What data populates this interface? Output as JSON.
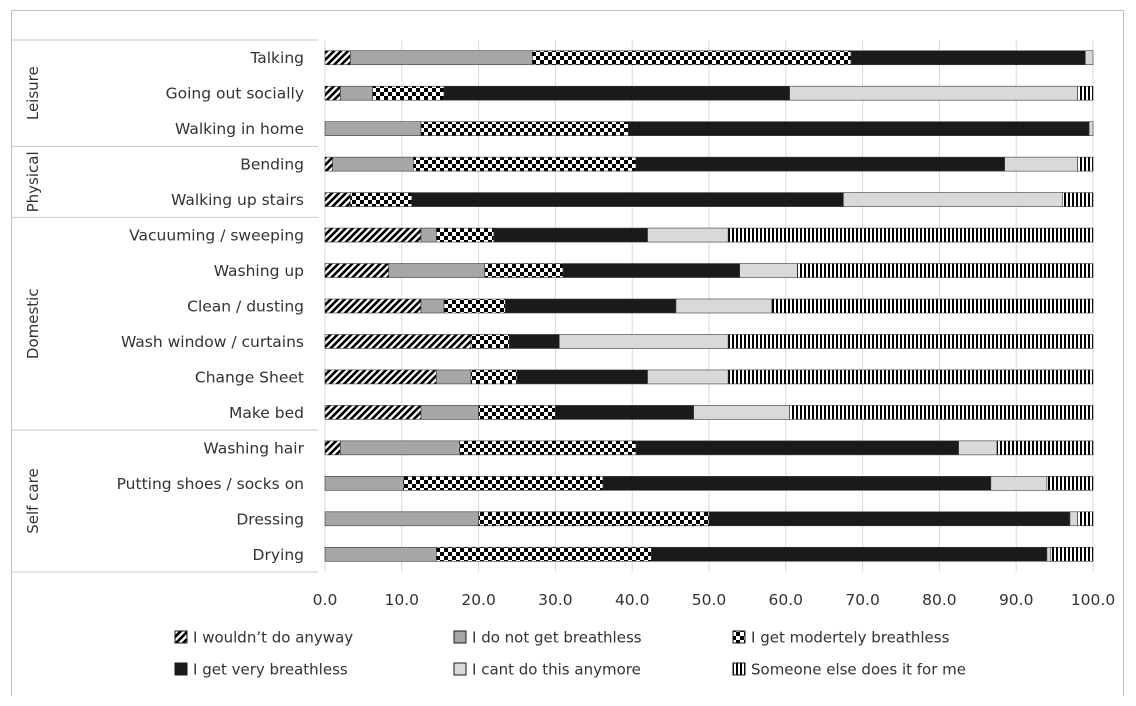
{
  "chart_data": {
    "type": "bar",
    "orientation": "horizontal",
    "stacked": true,
    "xlim": [
      0,
      100
    ],
    "xticks": [
      "0.0",
      "10.0",
      "20.0",
      "30.0",
      "40.0",
      "50.0",
      "60.0",
      "70.0",
      "80.0",
      "90.0",
      "100.0"
    ],
    "grid": "vertical",
    "legend_position": "bottom",
    "groups": [
      {
        "label": "Leisure",
        "categories": [
          "Talking",
          "Going out socially",
          "Walking in home"
        ]
      },
      {
        "label": "Physical",
        "categories": [
          "Bending",
          "Walking up stairs"
        ]
      },
      {
        "label": "Domestic",
        "categories": [
          "Vacuuming / sweeping",
          "Washing up",
          "Clean / dusting",
          "Wash window / curtains",
          "Change Sheet",
          "Make bed"
        ]
      },
      {
        "label": "Self care",
        "categories": [
          "Washing hair",
          "Putting shoes / socks on",
          "Dressing",
          "Drying"
        ]
      }
    ],
    "categories": [
      "Talking",
      "Going out socially",
      "Walking in home",
      "Bending",
      "Walking up stairs",
      "Vacuuming / sweeping",
      "Washing up",
      "Clean / dusting",
      "Wash window / curtains",
      "Change Sheet",
      "Make bed",
      "Washing hair",
      "Putting shoes / socks on",
      "Dressing",
      "Drying"
    ],
    "series": [
      {
        "name": "I wouldn’t do anyway",
        "pattern": "diagonal",
        "values": [
          3.3,
          2.0,
          0.0,
          1.0,
          3.3,
          12.5,
          8.3,
          12.5,
          19.0,
          14.5,
          12.5,
          2.0,
          0.0,
          0.0,
          0.0
        ]
      },
      {
        "name": "I do not get breathless",
        "pattern": "gray",
        "values": [
          23.7,
          4.2,
          12.5,
          10.5,
          0.0,
          2.0,
          12.5,
          3.0,
          0.0,
          4.5,
          7.5,
          15.5,
          10.2,
          20.0,
          14.5
        ]
      },
      {
        "name": "I get modertely breathless",
        "pattern": "checker",
        "values": [
          41.5,
          9.3,
          27.0,
          29.0,
          8.0,
          7.5,
          10.2,
          8.0,
          5.0,
          6.0,
          10.0,
          23.0,
          26.0,
          30.0,
          28.0
        ]
      },
      {
        "name": "I get very breathless",
        "pattern": "black",
        "values": [
          30.5,
          45.0,
          60.0,
          48.0,
          56.2,
          20.0,
          23.0,
          22.2,
          6.5,
          17.0,
          18.0,
          42.0,
          50.5,
          47.0,
          51.5
        ]
      },
      {
        "name": "I cant do this anymore",
        "pattern": "lightgray",
        "values": [
          1.0,
          37.5,
          0.5,
          9.5,
          28.5,
          10.5,
          7.5,
          12.5,
          22.0,
          10.5,
          12.5,
          5.0,
          7.3,
          1.0,
          0.5
        ]
      },
      {
        "name": "Someone else does it for me",
        "pattern": "vertical",
        "values": [
          0.0,
          2.0,
          0.0,
          2.0,
          4.0,
          47.5,
          38.5,
          41.8,
          47.5,
          47.5,
          39.5,
          12.5,
          6.0,
          2.0,
          5.5
        ]
      }
    ]
  }
}
